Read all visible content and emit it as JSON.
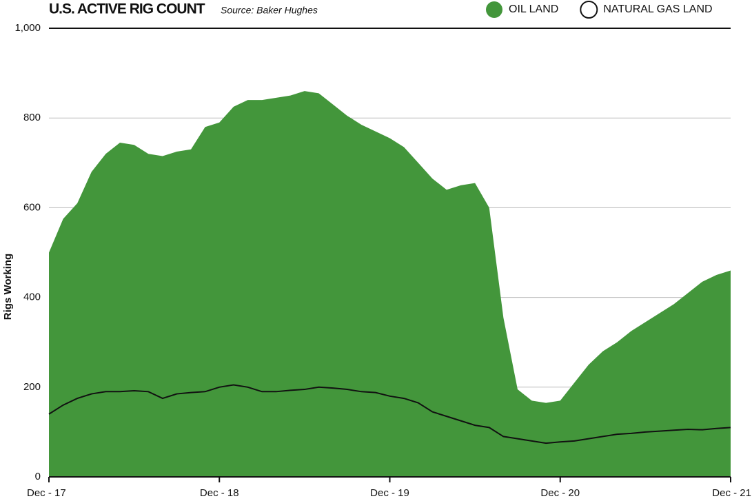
{
  "chart_data": {
    "type": "area",
    "title": "U.S. ACTIVE RIG COUNT",
    "subtitle": "Source: Baker Hughes",
    "y_label": "Rigs Working",
    "categories": [
      "Dec - 17",
      null,
      null,
      null,
      null,
      null,
      null,
      null,
      null,
      null,
      null,
      null,
      "Dec - 18",
      null,
      null,
      null,
      null,
      null,
      null,
      null,
      null,
      null,
      null,
      null,
      "Dec - 19",
      null,
      null,
      null,
      null,
      null,
      null,
      null,
      null,
      null,
      null,
      null,
      "Dec - 20",
      null,
      null,
      null,
      null,
      null,
      null,
      null,
      null,
      null,
      null,
      null,
      "Dec - 21"
    ],
    "series": [
      {
        "name": "OIL LAND",
        "color": "#43963b",
        "style": "area",
        "values": [
          500,
          575,
          610,
          680,
          720,
          745,
          740,
          720,
          715,
          725,
          730,
          780,
          790,
          825,
          840,
          840,
          845,
          850,
          860,
          855,
          830,
          805,
          785,
          770,
          755,
          735,
          700,
          665,
          640,
          650,
          655,
          600,
          355,
          195,
          170,
          165,
          170,
          210,
          250,
          280,
          300,
          325,
          345,
          365,
          385,
          410,
          435,
          450,
          460
        ]
      },
      {
        "name": "NATURAL GAS LAND",
        "color": "#111111",
        "style": "line",
        "values": [
          140,
          160,
          175,
          185,
          190,
          190,
          192,
          190,
          175,
          185,
          188,
          190,
          200,
          205,
          200,
          190,
          190,
          193,
          195,
          200,
          198,
          195,
          190,
          188,
          180,
          175,
          165,
          145,
          135,
          125,
          115,
          110,
          90,
          85,
          80,
          75,
          78,
          80,
          85,
          90,
          95,
          97,
          100,
          102,
          104,
          106,
          105,
          108,
          110
        ]
      }
    ],
    "ylim": [
      0,
      1000
    ],
    "yticks": [
      0,
      200,
      400,
      600,
      800,
      {
        "value": 1000,
        "label": "1,000"
      }
    ],
    "grid": true
  }
}
